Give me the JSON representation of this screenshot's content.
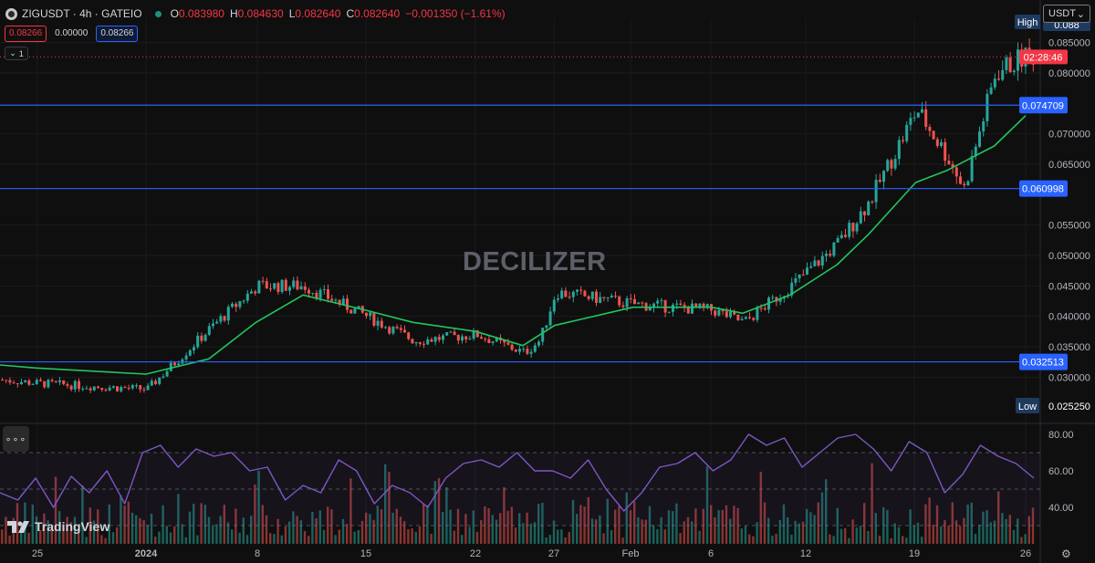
{
  "legend": {
    "title": "ZIGUSDT · 4h · GATEIO",
    "open_label": "O",
    "open": "0.083980",
    "high_label": "H",
    "high": "0.084630",
    "low_label": "L",
    "low": "0.082640",
    "close_label": "C",
    "close": "0.082640",
    "change": "−0.001350 (−1.61%)"
  },
  "price_boxes": {
    "bid": "0.08266",
    "spread": "0.00000",
    "ask": "0.08266"
  },
  "indicator_toggle": "1",
  "currency_select": "USDT",
  "watermark": "DECILIZER",
  "brand": "TradingView",
  "colors": {
    "up": "#26a69a",
    "down": "#ef5350",
    "ma": "#22c55e",
    "level_line": "#2962ff",
    "rsi": "#7e57c2",
    "current_price": "#f23645"
  },
  "chart_data": {
    "type": "line",
    "title": "",
    "price_axis_ticks": [
      "0.085000",
      "0.080000",
      "0.070000",
      "0.065000",
      "0.055000",
      "0.050000",
      "0.045000",
      "0.040000",
      "0.035000",
      "0.030000"
    ],
    "time_axis_ticks": [
      "25",
      "2024",
      "8",
      "15",
      "22",
      "27",
      "Feb",
      "6",
      "12",
      "19",
      "26"
    ],
    "ylim": [
      0.023,
      0.089
    ],
    "horizontal_levels": [
      {
        "label": "0.074709",
        "value": 0.074709
      },
      {
        "label": "0.060998",
        "value": 0.060998
      },
      {
        "label": "0.032513",
        "value": 0.032513
      }
    ],
    "high_marker": {
      "label": "High",
      "value_text": "0.088"
    },
    "low_marker": {
      "label": "Low",
      "value": 0.02525,
      "value_text": "0.025250"
    },
    "current_price": {
      "value": 0.08264,
      "countdown": "02:28:46"
    },
    "price_series": {
      "name": "",
      "x": [
        "Dec 21",
        "Dec 25",
        "Jan 1",
        "Jan 5",
        "Jan 8",
        "Jan 11",
        "Jan 15",
        "Jan 18",
        "Jan 22",
        "Jan 25",
        "Jan 26",
        "Jan 27",
        "Feb 1",
        "Feb 6",
        "Feb 8",
        "Feb 11",
        "Feb 14",
        "Feb 16",
        "Feb 19",
        "Feb 21",
        "Feb 22",
        "Feb 24",
        "Feb 26"
      ],
      "y": [
        0.03,
        0.029,
        0.028,
        0.038,
        0.045,
        0.045,
        0.04,
        0.036,
        0.037,
        0.034,
        0.036,
        0.044,
        0.042,
        0.041,
        0.039,
        0.045,
        0.052,
        0.059,
        0.074,
        0.066,
        0.061,
        0.08,
        0.083
      ]
    },
    "ma_series": {
      "name": "",
      "x": [
        "Dec 21",
        "Dec 25",
        "Jan 1",
        "Jan 5",
        "Jan 8",
        "Jan 11",
        "Jan 15",
        "Jan 18",
        "Jan 22",
        "Jan 25",
        "Jan 27",
        "Feb 1",
        "Feb 6",
        "Feb 8",
        "Feb 11",
        "Feb 14",
        "Feb 16",
        "Feb 19",
        "Feb 21",
        "Feb 24",
        "Feb 26"
      ],
      "y": [
        0.032,
        0.0315,
        0.0305,
        0.033,
        0.039,
        0.0435,
        0.041,
        0.039,
        0.0375,
        0.0352,
        0.0385,
        0.0415,
        0.0415,
        0.0405,
        0.0435,
        0.0485,
        0.0535,
        0.062,
        0.064,
        0.068,
        0.073
      ]
    },
    "rsi": {
      "ticks": [
        "80.00",
        "60.00",
        "40.00"
      ],
      "ylim": [
        20,
        85
      ],
      "values": [
        48,
        44,
        56,
        40,
        57,
        48,
        60,
        42,
        70,
        74,
        62,
        72,
        68,
        70,
        60,
        62,
        44,
        52,
        48,
        66,
        60,
        42,
        52,
        48,
        40,
        56,
        64,
        66,
        62,
        70,
        60,
        60,
        56,
        66,
        50,
        38,
        48,
        62,
        64,
        70,
        60,
        66,
        80,
        74,
        78,
        62,
        70,
        78,
        80,
        72,
        60,
        76,
        70,
        48,
        58,
        74,
        68,
        64,
        56
      ]
    }
  }
}
